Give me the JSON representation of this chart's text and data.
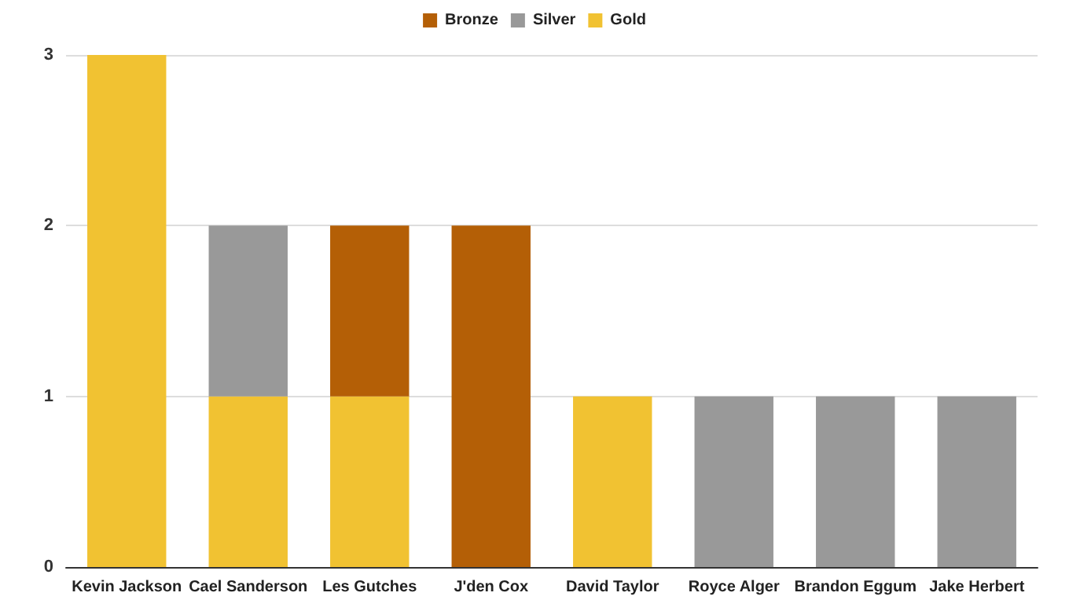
{
  "chart_data": {
    "type": "bar",
    "stacked": true,
    "categories": [
      "Kevin Jackson",
      "Cael Sanderson",
      "Les Gutches",
      "J'den Cox",
      "David Taylor",
      "Royce Alger",
      "Brandon Eggum",
      "Jake Herbert"
    ],
    "series": [
      {
        "name": "Gold",
        "color": "#f1c232",
        "values": [
          3,
          1,
          1,
          null,
          1,
          null,
          null,
          null
        ]
      },
      {
        "name": "Silver",
        "color": "#999999",
        "values": [
          null,
          1,
          null,
          null,
          null,
          1,
          1,
          1
        ]
      },
      {
        "name": "Bronze",
        "color": "#b45f06",
        "values": [
          null,
          null,
          1,
          2,
          null,
          null,
          null,
          null
        ]
      }
    ],
    "ylim": [
      0,
      3
    ],
    "yticks": [
      0,
      1,
      2,
      3
    ],
    "grid": "y",
    "legend": "top"
  }
}
